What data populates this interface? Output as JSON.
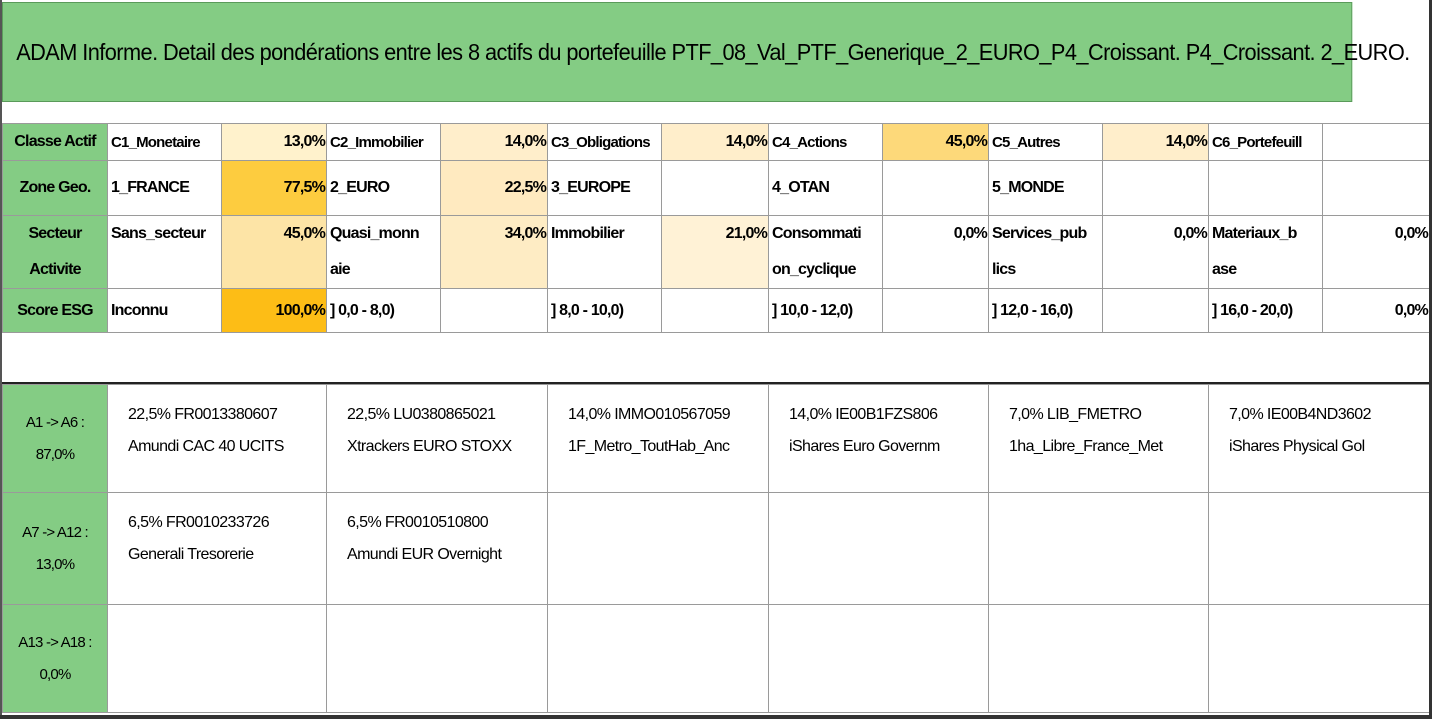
{
  "title": "ADAM Informe. Detail des pondérations entre les 8 actifs du portefeuille PTF_08_Val_PTF_Generique_2_EURO_P4_Croissant. P4_Croissant. 2_EURO.",
  "rows": [
    {
      "header": [
        "Classe Actif"
      ],
      "cells": [
        {
          "label": "C1_Monetaire",
          "value": "13,0%",
          "color": "#fff2cc"
        },
        {
          "label": "C2_Immobilier",
          "value": "14,0%",
          "color": "#ffeecb"
        },
        {
          "label": "C3_Obligations",
          "value": "14,0%",
          "color": "#ffeecb"
        },
        {
          "label": "C4_Actions",
          "value": "45,0%",
          "color": "#fdd97a"
        },
        {
          "label": "C5_Autres",
          "value": "14,0%",
          "color": "#ffeecb"
        },
        {
          "label": "C6_Portefeuill",
          "value": "",
          "color": "#ffffff"
        }
      ]
    },
    {
      "header": [
        "Zone Geo."
      ],
      "cells": [
        {
          "label": "1_FRANCE",
          "value": "77,5%",
          "color": "#fdcc3f"
        },
        {
          "label": "2_EURO",
          "value": "22,5%",
          "color": "#ffeac0"
        },
        {
          "label": "3_EUROPE",
          "value": "",
          "color": "#ffffff"
        },
        {
          "label": "4_OTAN",
          "value": "",
          "color": "#ffffff"
        },
        {
          "label": "5_MONDE",
          "value": "",
          "color": "#ffffff"
        },
        {
          "label": "",
          "value": "",
          "color": "#ffffff"
        }
      ]
    },
    {
      "header": [
        "Secteur",
        "Activite"
      ],
      "cells": [
        {
          "label": "Sans_secteur",
          "label2": "",
          "value": "45,0%",
          "color": "#fde4a6"
        },
        {
          "label": "Quasi_monn",
          "label2": "aie",
          "value": "34,0%",
          "color": "#feecc4"
        },
        {
          "label": "Immobilier",
          "label2": "",
          "value": "21,0%",
          "color": "#fff2d6"
        },
        {
          "label": "Consommati",
          "label2": "on_cyclique",
          "value": "0,0%",
          "color": "#ffffff"
        },
        {
          "label": "Services_pub",
          "label2": "lics",
          "value": "0,0%",
          "color": "#ffffff"
        },
        {
          "label": "Materiaux_b",
          "label2": "ase",
          "value": "0,0%",
          "color": "#ffffff"
        }
      ]
    },
    {
      "header": [
        "Score ESG"
      ],
      "cells": [
        {
          "label": "Inconnu",
          "value": "100,0%",
          "color": "#fdbd16"
        },
        {
          "label": "] 0,0 - 8,0)",
          "value": "",
          "color": "#ffffff"
        },
        {
          "label": "] 8,0 - 10,0)",
          "value": "",
          "color": "#ffffff"
        },
        {
          "label": "] 10,0 - 12,0)",
          "value": "",
          "color": "#ffffff"
        },
        {
          "label": "] 12,0 - 16,0)",
          "value": "",
          "color": "#ffffff"
        },
        {
          "label": "] 16,0 - 20,0)",
          "value": "0,0%",
          "color": "#ffffff"
        }
      ]
    }
  ],
  "asset_rows": [
    {
      "header": "A1 -> A6 :",
      "total": "87,0%",
      "assets": [
        {
          "line1": "22,5% FR0013380607",
          "line2": "Amundi CAC 40 UCITS"
        },
        {
          "line1": "22,5% LU0380865021",
          "line2": "Xtrackers EURO STOXX"
        },
        {
          "line1": "14,0% IMMO010567059",
          "line2": "1F_Metro_ToutHab_Anc"
        },
        {
          "line1": "14,0% IE00B1FZS806",
          "line2": "iShares Euro Governm"
        },
        {
          "line1": "7,0% LIB_FMETRO",
          "line2": "1ha_Libre_France_Met"
        },
        {
          "line1": "7,0% IE00B4ND3602",
          "line2": "iShares Physical Gol"
        }
      ]
    },
    {
      "header": "A7 -> A12 :",
      "total": "13,0%",
      "assets": [
        {
          "line1": "6,5% FR0010233726",
          "line2": "Generali Tresorerie"
        },
        {
          "line1": "6,5% FR0010510800",
          "line2": "Amundi EUR Overnight"
        },
        {
          "line1": "",
          "line2": ""
        },
        {
          "line1": "",
          "line2": ""
        },
        {
          "line1": "",
          "line2": ""
        },
        {
          "line1": "",
          "line2": ""
        }
      ]
    },
    {
      "header": "A13 -> A18 :",
      "total": "0,0%",
      "assets": [
        {
          "line1": "",
          "line2": ""
        },
        {
          "line1": "",
          "line2": ""
        },
        {
          "line1": "",
          "line2": ""
        },
        {
          "line1": "",
          "line2": ""
        },
        {
          "line1": "",
          "line2": ""
        },
        {
          "line1": "",
          "line2": ""
        }
      ]
    }
  ],
  "colors": {
    "header_green": "#84cc84",
    "border": "#9a9a9a"
  }
}
